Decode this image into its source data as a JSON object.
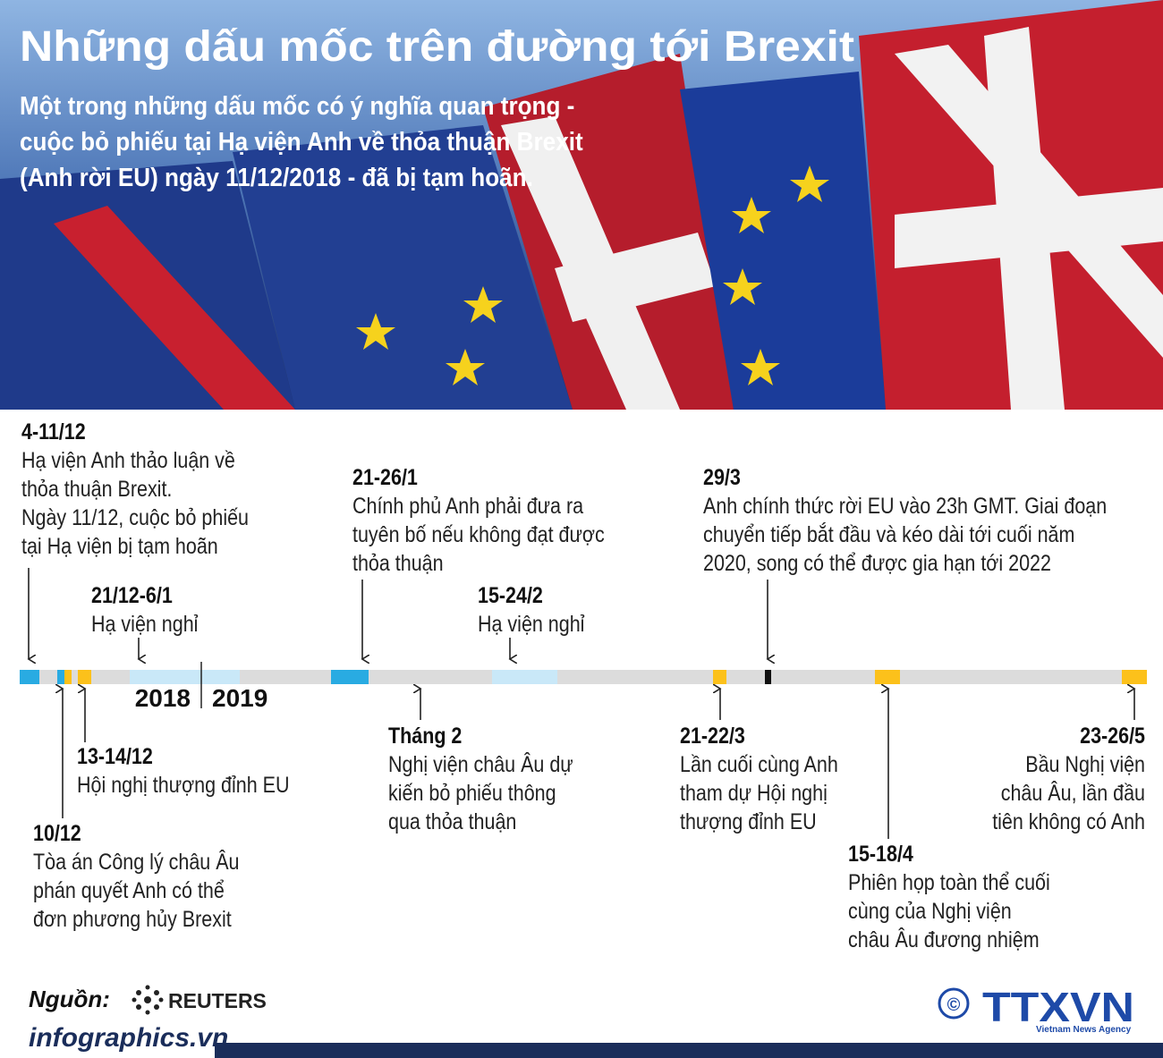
{
  "header": {
    "title": "Những dấu mốc trên đường tới Brexit",
    "subtitle": [
      "Một trong những dấu mốc có ý nghĩa quan trọng -",
      "cuộc bỏ phiếu tại Hạ viện Anh về thỏa thuận Brexit",
      "(Anh rời EU) ngày 11/12/2018 - đã bị tạm hoãn."
    ]
  },
  "timeline": {
    "years": [
      "2018",
      "2019"
    ],
    "events": [
      {
        "date": "4-11/12",
        "lines": [
          "Hạ viện Anh thảo luận về",
          "thỏa thuận Brexit.",
          "Ngày 11/12, cuộc bỏ phiếu",
          "tại Hạ viện bị tạm hoãn"
        ]
      },
      {
        "date": "21/12-6/1",
        "lines": [
          "Hạ viện nghỉ"
        ]
      },
      {
        "date": "21-26/1",
        "lines": [
          "Chính phủ Anh phải đưa ra",
          "tuyên bố nếu không đạt được",
          "thỏa thuận"
        ]
      },
      {
        "date": "15-24/2",
        "lines": [
          "Hạ viện nghỉ"
        ]
      },
      {
        "date": "29/3",
        "lines": [
          "Anh chính thức rời EU vào 23h GMT. Giai đoạn",
          "chuyển tiếp bắt đầu và kéo dài tới cuối năm",
          "2020, song có thể được gia hạn tới 2022"
        ]
      },
      {
        "date": "10/12",
        "lines": [
          "Tòa án Công lý châu Âu",
          "phán quyết Anh có thể",
          "đơn phương hủy Brexit"
        ]
      },
      {
        "date": "13-14/12",
        "lines": [
          "Hội nghị thượng đỉnh EU"
        ]
      },
      {
        "date": "Tháng 2",
        "lines": [
          "Nghị viện châu Âu dự",
          "kiến bỏ phiếu thông",
          "qua thỏa thuận"
        ]
      },
      {
        "date": "21-22/3",
        "lines": [
          "Lần cuối cùng Anh",
          "tham dự Hội nghị",
          "thượng đỉnh EU"
        ]
      },
      {
        "date": "15-18/4",
        "lines": [
          "Phiên họp toàn thể cuối",
          "cùng của Nghị viện",
          "châu Âu đương nhiệm"
        ]
      },
      {
        "date": "23-26/5",
        "lines": [
          "Bầu Nghị viện",
          "châu Âu, lần đầu",
          "tiên không có Anh"
        ]
      }
    ]
  },
  "footer": {
    "source_label": "Nguồn:",
    "source": "REUTERS",
    "site": "infographics.vn",
    "copyright": "©",
    "agency": "TTXVN",
    "agency_full": "Vietnam News Agency"
  }
}
